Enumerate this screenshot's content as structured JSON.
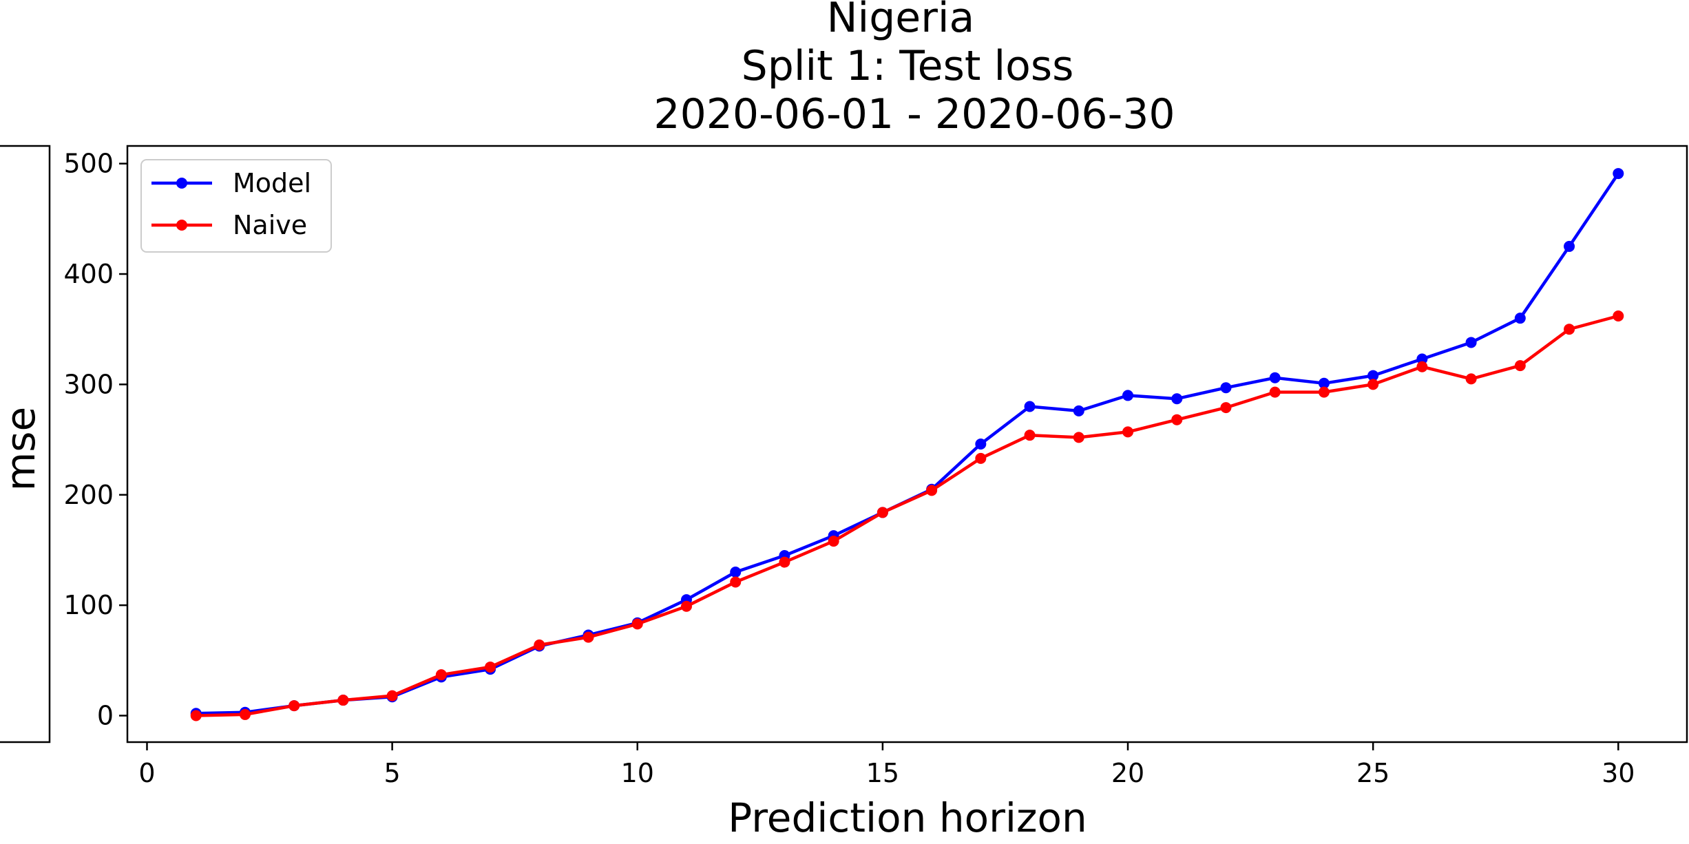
{
  "chart_data": {
    "type": "line",
    "title": [
      "Nigeria",
      "Split 1: Test loss",
      "2020-06-01 - 2020-06-30"
    ],
    "xlabel": "Prediction horizon",
    "ylabel": "mse",
    "xlim": [
      -0.4,
      31.4
    ],
    "ylim": [
      -24,
      516
    ],
    "xticks": [
      0,
      5,
      10,
      15,
      20,
      25,
      30
    ],
    "yticks": [
      0,
      100,
      200,
      300,
      400,
      500
    ],
    "grid": false,
    "legend": "top-left",
    "x": [
      1,
      2,
      3,
      4,
      5,
      6,
      7,
      8,
      9,
      10,
      11,
      12,
      13,
      14,
      15,
      16,
      17,
      18,
      19,
      20,
      21,
      22,
      23,
      24,
      25,
      26,
      27,
      28,
      29,
      30
    ],
    "series": [
      {
        "name": "Model",
        "color": "#0000ff",
        "values": [
          2,
          3,
          9,
          14,
          17,
          35,
          42,
          63,
          73,
          84,
          105,
          130,
          145,
          163,
          184,
          205,
          246,
          280,
          276,
          290,
          287,
          297,
          306,
          301,
          308,
          323,
          338,
          360,
          425,
          491
        ]
      },
      {
        "name": "Naive",
        "color": "#ff0000",
        "values": [
          0,
          1,
          9,
          14,
          18,
          37,
          44,
          64,
          71,
          83,
          99,
          121,
          139,
          158,
          184,
          204,
          233,
          254,
          252,
          257,
          268,
          279,
          293,
          293,
          300,
          316,
          305,
          317,
          350,
          362
        ]
      }
    ]
  }
}
